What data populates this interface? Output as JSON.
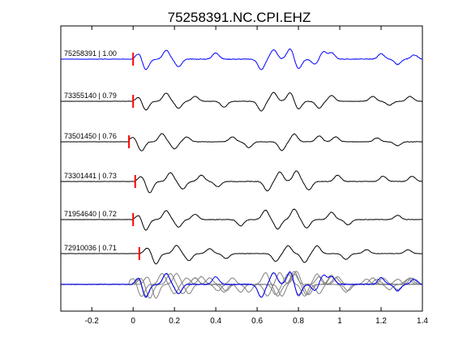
{
  "chart_data": {
    "type": "line",
    "title": "75258391.NC.CPI.EHZ",
    "xlabel": "",
    "ylabel": "",
    "xlim": [
      -0.35,
      1.4
    ],
    "xticks": [
      -0.2,
      0,
      0.2,
      0.4,
      0.6,
      0.8,
      1,
      1.2,
      1.4
    ],
    "xtick_labels": [
      "-0.2",
      "0",
      "0.2",
      "0.4",
      "0.6",
      "0.8",
      "1",
      "1.2",
      "1.4"
    ],
    "grid": false,
    "legend": "none",
    "colors": {
      "reference": "#0000ff",
      "trace": "#000000",
      "overlay": "#808080",
      "pick": "#ff0000"
    },
    "traces": [
      {
        "label": "75258391 | 1.00",
        "id": "75258391",
        "correlation": 1.0,
        "pick_time": 0.0,
        "color": "#0000ff",
        "amp": 13,
        "noise": 0.8,
        "seed": 3,
        "waves": [
          [
            0.03,
            0.5,
            7.0
          ],
          [
            0.06,
            -0.9,
            11.0
          ],
          [
            0.16,
            0.7,
            9.0
          ],
          [
            0.22,
            -0.6,
            7.0
          ],
          [
            0.4,
            0.6,
            3.0
          ],
          [
            0.62,
            -1.0,
            3.0
          ],
          [
            0.68,
            0.9,
            3.0
          ],
          [
            0.76,
            1.0,
            3.0
          ],
          [
            0.8,
            -0.9,
            3.0
          ],
          [
            0.88,
            -0.5,
            3.0
          ],
          [
            0.92,
            0.7,
            3.0
          ],
          [
            0.96,
            0.6,
            3.0
          ],
          [
            1.2,
            0.5,
            3.0
          ],
          [
            1.28,
            -0.5,
            3.0
          ],
          [
            1.36,
            0.4,
            3.0
          ]
        ]
      },
      {
        "label": "73355140 | 0.79",
        "id": "73355140",
        "correlation": 0.79,
        "pick_time": 0.0,
        "color": "#000000",
        "amp": 12,
        "noise": 0.6,
        "seed": 7,
        "waves": [
          [
            0.03,
            0.4,
            7.0
          ],
          [
            0.06,
            -0.8,
            11.0
          ],
          [
            0.16,
            0.7,
            9.0
          ],
          [
            0.22,
            -0.6,
            7.0
          ],
          [
            0.3,
            0.5,
            4.0
          ],
          [
            0.44,
            -0.6,
            3.0
          ],
          [
            0.62,
            -1.0,
            3.0
          ],
          [
            0.68,
            0.9,
            3.0
          ],
          [
            0.76,
            0.9,
            3.0
          ],
          [
            0.8,
            -0.8,
            3.0
          ],
          [
            0.9,
            -0.7,
            3.0
          ],
          [
            0.96,
            0.6,
            3.0
          ],
          [
            1.16,
            0.5,
            3.0
          ],
          [
            1.24,
            -0.4,
            3.0
          ],
          [
            1.34,
            0.5,
            3.0
          ]
        ]
      },
      {
        "label": "73501450 | 0.76",
        "id": "73501450",
        "correlation": 0.76,
        "pick_time": -0.02,
        "color": "#000000",
        "amp": 12,
        "noise": 0.6,
        "seed": 11,
        "waves": [
          [
            0.02,
            0.4,
            7.0
          ],
          [
            0.06,
            -0.8,
            11.0
          ],
          [
            0.16,
            0.7,
            9.0
          ],
          [
            0.22,
            -0.6,
            7.0
          ],
          [
            0.28,
            0.5,
            4.0
          ],
          [
            0.5,
            0.5,
            3.0
          ],
          [
            0.58,
            -0.6,
            3.0
          ],
          [
            0.74,
            -0.9,
            3.0
          ],
          [
            0.8,
            0.8,
            3.0
          ],
          [
            0.92,
            0.6,
            3.0
          ],
          [
            1.0,
            0.5,
            3.0
          ],
          [
            1.2,
            0.4,
            3.0
          ],
          [
            1.3,
            -0.4,
            3.0
          ]
        ]
      },
      {
        "label": "73301441 | 0.73",
        "id": "73301441",
        "correlation": 0.73,
        "pick_time": 0.01,
        "color": "#000000",
        "amp": 13,
        "noise": 0.6,
        "seed": 13,
        "waves": [
          [
            0.03,
            0.4,
            7.0
          ],
          [
            0.07,
            -0.9,
            11.0
          ],
          [
            0.17,
            0.7,
            9.0
          ],
          [
            0.23,
            -0.6,
            7.0
          ],
          [
            0.32,
            0.6,
            4.0
          ],
          [
            0.4,
            -0.5,
            3.0
          ],
          [
            0.64,
            -0.9,
            3.0
          ],
          [
            0.7,
            0.9,
            3.0
          ],
          [
            0.78,
            1.0,
            3.0
          ],
          [
            0.84,
            -0.8,
            3.0
          ],
          [
            0.98,
            0.6,
            3.0
          ],
          [
            1.2,
            0.5,
            3.0
          ],
          [
            1.34,
            0.5,
            3.0
          ]
        ]
      },
      {
        "label": "71954640 | 0.72",
        "id": "71954640",
        "correlation": 0.72,
        "pick_time": 0.0,
        "color": "#000000",
        "amp": 13,
        "noise": 0.6,
        "seed": 17,
        "waves": [
          [
            0.03,
            0.4,
            7.0
          ],
          [
            0.06,
            -0.9,
            11.0
          ],
          [
            0.16,
            0.7,
            9.0
          ],
          [
            0.22,
            -0.6,
            7.0
          ],
          [
            0.3,
            0.5,
            4.0
          ],
          [
            0.52,
            -0.6,
            3.0
          ],
          [
            0.64,
            0.9,
            3.0
          ],
          [
            0.7,
            -0.9,
            3.0
          ],
          [
            0.78,
            1.0,
            3.0
          ],
          [
            0.84,
            -0.8,
            3.0
          ],
          [
            0.96,
            0.7,
            3.0
          ],
          [
            1.04,
            -0.5,
            3.0
          ],
          [
            1.28,
            0.4,
            3.0
          ]
        ]
      },
      {
        "label": "72910036 | 0.71",
        "id": "72910036",
        "correlation": 0.71,
        "pick_time": 0.03,
        "color": "#000000",
        "amp": 12,
        "noise": 0.5,
        "seed": 19,
        "waves": [
          [
            0.04,
            0.5,
            7.0
          ],
          [
            0.08,
            -0.9,
            11.0
          ],
          [
            0.18,
            0.7,
            9.0
          ],
          [
            0.24,
            -0.6,
            7.0
          ],
          [
            0.34,
            0.5,
            4.0
          ],
          [
            0.42,
            -0.5,
            3.0
          ],
          [
            0.66,
            -0.8,
            3.0
          ],
          [
            0.72,
            0.8,
            3.0
          ],
          [
            0.8,
            -0.9,
            3.0
          ],
          [
            0.86,
            0.8,
            3.0
          ],
          [
            1.0,
            -0.6,
            3.0
          ],
          [
            1.1,
            0.4,
            3.0
          ],
          [
            1.3,
            0.4,
            3.0
          ]
        ]
      }
    ]
  }
}
